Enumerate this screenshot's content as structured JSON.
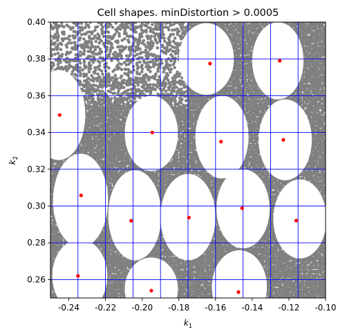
{
  "chart_data": {
    "type": "scatter",
    "title": "Cell shapes. minDistortion > 0.0005",
    "xlabel": "k",
    "xlabel_sub": "1",
    "ylabel": "k",
    "ylabel_sub": "2",
    "xlim": [
      -0.25,
      -0.1
    ],
    "ylim": [
      0.25,
      0.4
    ],
    "x_ticks": [
      -0.24,
      -0.22,
      -0.2,
      -0.18,
      -0.16,
      -0.14,
      -0.12,
      -0.1
    ],
    "x_tick_labels": [
      "-0.24",
      "-0.22",
      "-0.20",
      "-0.18",
      "-0.16",
      "-0.14",
      "-0.12",
      "-0.10"
    ],
    "y_ticks": [
      0.26,
      0.28,
      0.3,
      0.32,
      0.34,
      0.36,
      0.38,
      0.4
    ],
    "y_tick_labels": [
      "0.26",
      "0.28",
      "0.30",
      "0.32",
      "0.34",
      "0.36",
      "0.38",
      "0.40"
    ],
    "grid": true,
    "grid_lines_x": [
      -0.25,
      -0.235,
      -0.22,
      -0.205,
      -0.19,
      -0.175,
      -0.16,
      -0.145,
      -0.13,
      -0.115,
      -0.1
    ],
    "grid_lines_y": [
      0.25,
      0.26,
      0.28,
      0.3,
      0.32,
      0.34,
      0.36,
      0.38,
      0.4
    ],
    "colors": {
      "background_points": "#808080",
      "centers": "#ff0000",
      "grid": "#0000ff"
    },
    "holes": [
      {
        "cx": -0.2455,
        "cy": 0.3495,
        "rx": 0.0145,
        "ry": 0.0245
      },
      {
        "cx": -0.2336,
        "cy": 0.303,
        "rx": 0.015,
        "ry": 0.0255
      },
      {
        "cx": -0.234,
        "cy": 0.262,
        "rx": 0.015,
        "ry": 0.02
      },
      {
        "cx": -0.195,
        "cy": 0.3395,
        "rx": 0.0145,
        "ry": 0.0205
      },
      {
        "cx": -0.204,
        "cy": 0.295,
        "rx": 0.0145,
        "ry": 0.0245
      },
      {
        "cx": -0.195,
        "cy": 0.255,
        "rx": 0.0145,
        "ry": 0.017
      },
      {
        "cx": -0.165,
        "cy": 0.38,
        "rx": 0.015,
        "ry": 0.0195
      },
      {
        "cx": -0.1565,
        "cy": 0.3375,
        "rx": 0.0145,
        "ry": 0.0225
      },
      {
        "cx": -0.175,
        "cy": 0.294,
        "rx": 0.015,
        "ry": 0.0235
      },
      {
        "cx": -0.147,
        "cy": 0.256,
        "rx": 0.015,
        "ry": 0.02
      },
      {
        "cx": -0.145,
        "cy": 0.2985,
        "rx": 0.0145,
        "ry": 0.0215
      },
      {
        "cx": -0.126,
        "cy": 0.379,
        "rx": 0.014,
        "ry": 0.021
      },
      {
        "cx": -0.122,
        "cy": 0.336,
        "rx": 0.0145,
        "ry": 0.022
      },
      {
        "cx": -0.114,
        "cy": 0.293,
        "rx": 0.0145,
        "ry": 0.0215
      }
    ],
    "center_points": [
      {
        "x": -0.245,
        "y": 0.3495
      },
      {
        "x": -0.2333,
        "y": 0.3058
      },
      {
        "x": -0.235,
        "y": 0.262
      },
      {
        "x": -0.1945,
        "y": 0.34
      },
      {
        "x": -0.206,
        "y": 0.292
      },
      {
        "x": -0.195,
        "y": 0.254
      },
      {
        "x": -0.163,
        "y": 0.3775
      },
      {
        "x": -0.157,
        "y": 0.335
      },
      {
        "x": -0.1745,
        "y": 0.2937
      },
      {
        "x": -0.1475,
        "y": 0.2532
      },
      {
        "x": -0.1455,
        "y": 0.2988
      },
      {
        "x": -0.125,
        "y": 0.379
      },
      {
        "x": -0.123,
        "y": 0.336
      },
      {
        "x": -0.116,
        "y": 0.2921
      }
    ]
  }
}
